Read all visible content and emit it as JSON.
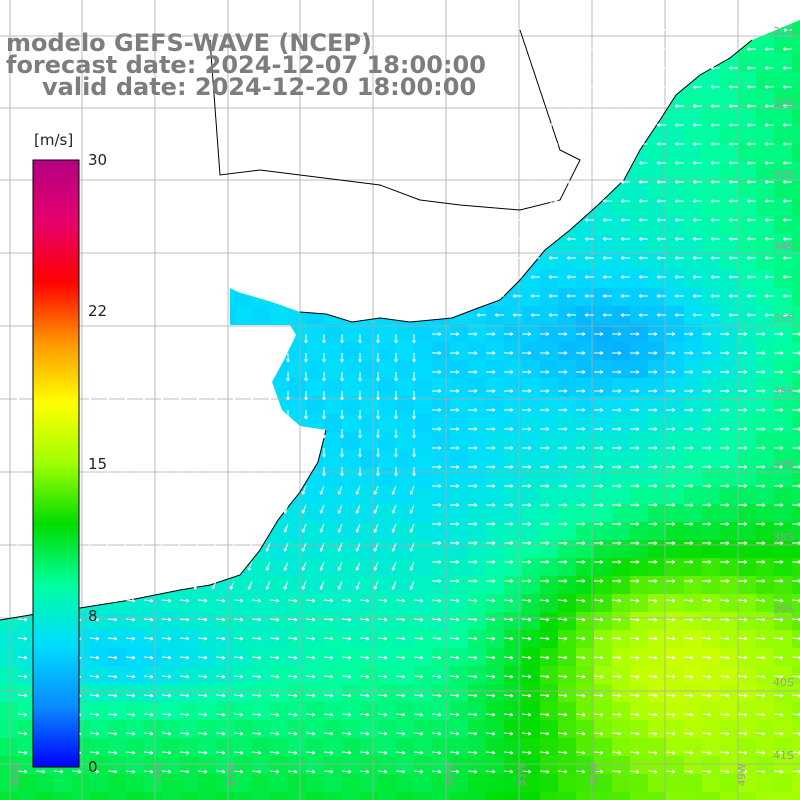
{
  "title": {
    "line1": "modelo GEFS-WAVE (NCEP)",
    "line2": "forecast date: 2024-12-07 18:00:00",
    "line3": "valid date: 2024-12-20 18:00:00"
  },
  "colorbar": {
    "unit": "[m/s]",
    "ticks": [
      "30",
      "22",
      "15",
      "8",
      "0"
    ],
    "tick_values": [
      30,
      22,
      15,
      8,
      0
    ],
    "range": [
      0,
      30
    ],
    "palette": [
      "#0000ff",
      "#0a8cff",
      "#00dcff",
      "#00ffa0",
      "#00dc00",
      "#a0ff00",
      "#ffff00",
      "#ff9600",
      "#ff0000",
      "#e6006e",
      "#b40082"
    ]
  },
  "axes": {
    "lat_labels": [
      "31S",
      "32S",
      "33S",
      "34S",
      "35S",
      "36S",
      "37S",
      "38S",
      "39S",
      "40S",
      "41S"
    ],
    "lon_labels": [
      "61W",
      "59W",
      "57W",
      "55W",
      "53W",
      "51W",
      "49W"
    ]
  },
  "colors": {
    "land": "#ffffff",
    "coast": "#000000",
    "grid": "#aaaaaa",
    "arrows": "#ffffff"
  },
  "icons": [
    "wind-arrow-icon"
  ]
}
